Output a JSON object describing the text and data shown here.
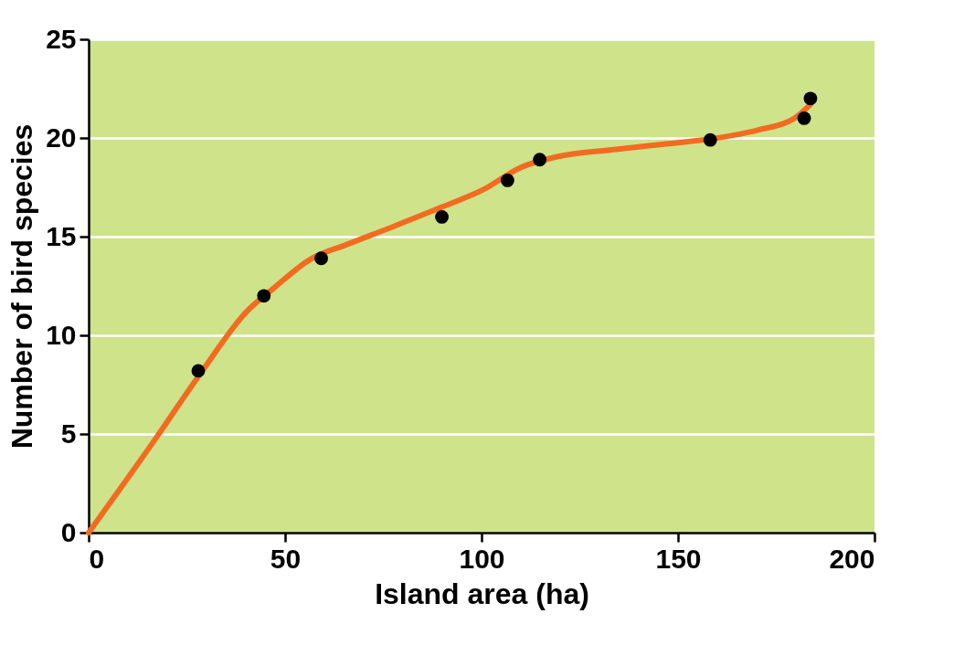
{
  "chart_data": {
    "type": "scatter",
    "xlabel": "Island area (ha)",
    "ylabel": "Number of bird species",
    "xlim": [
      0,
      200
    ],
    "ylim": [
      0,
      25
    ],
    "xticks": [
      0,
      50,
      100,
      150,
      200
    ],
    "yticks": [
      0,
      5,
      10,
      15,
      20,
      25
    ],
    "grid": "y",
    "legend": false,
    "series": [
      {
        "type": "line",
        "color": "#f26b21",
        "line_style": "solid",
        "marker": "none",
        "x": [
          0,
          17,
          27.9,
          40.2,
          47.2,
          56.4,
          65.7,
          77.4,
          89.9,
          100.6,
          109.9,
          119.2,
          133.1,
          147,
          158.2,
          170.3,
          179.6,
          183.7
        ],
        "values": [
          0,
          4.75,
          7.9,
          11.2,
          12.4,
          13.85,
          14.6,
          15.5,
          16.5,
          17.4,
          18.5,
          19.05,
          19.4,
          19.7,
          19.95,
          20.4,
          21,
          21.7
        ]
      },
      {
        "color": "#000000",
        "marker": "circle",
        "x": [
          27.9,
          44.6,
          59.2,
          89.9,
          106.6,
          114.8,
          158.2,
          182.1,
          183.7
        ],
        "values": [
          8.2,
          12,
          13.9,
          16,
          17.85,
          18.9,
          19.9,
          21,
          22
        ]
      }
    ]
  }
}
